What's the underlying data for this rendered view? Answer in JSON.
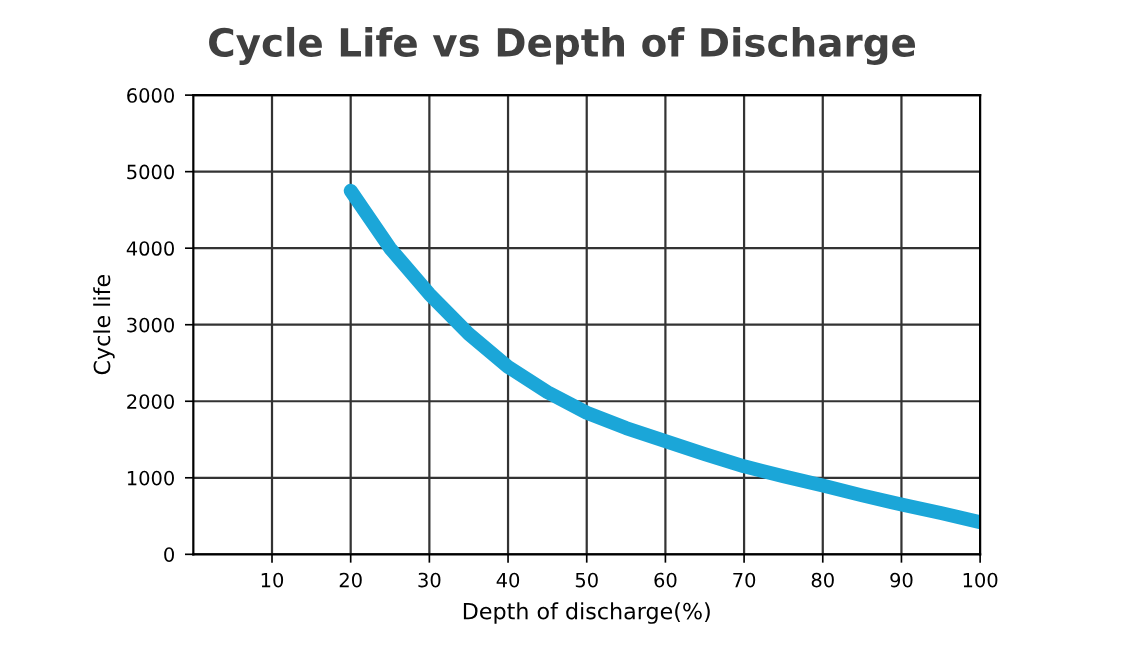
{
  "chart_data": {
    "type": "line",
    "title": "Cycle Life vs Depth of Discharge",
    "xlabel": "Depth of discharge(%)",
    "ylabel": "Cycle life",
    "x": [
      20,
      25,
      30,
      35,
      40,
      45,
      50,
      55,
      60,
      65,
      70,
      75,
      80,
      85,
      90,
      95,
      100
    ],
    "series": [
      {
        "color": "#1ba6d8",
        "values": [
          4750,
          4000,
          3400,
          2880,
          2450,
          2120,
          1850,
          1650,
          1480,
          1310,
          1150,
          1020,
          900,
          770,
          650,
          540,
          420
        ]
      }
    ],
    "xlim": [
      0,
      100
    ],
    "xticks": [
      10,
      20,
      30,
      40,
      50,
      60,
      70,
      80,
      90,
      100
    ],
    "ylim": [
      0,
      6000
    ],
    "yticks": [
      0,
      1000,
      2000,
      3000,
      4000,
      5000,
      6000
    ],
    "grid": true,
    "legend": false,
    "marker": "none",
    "line_style": "solid"
  }
}
